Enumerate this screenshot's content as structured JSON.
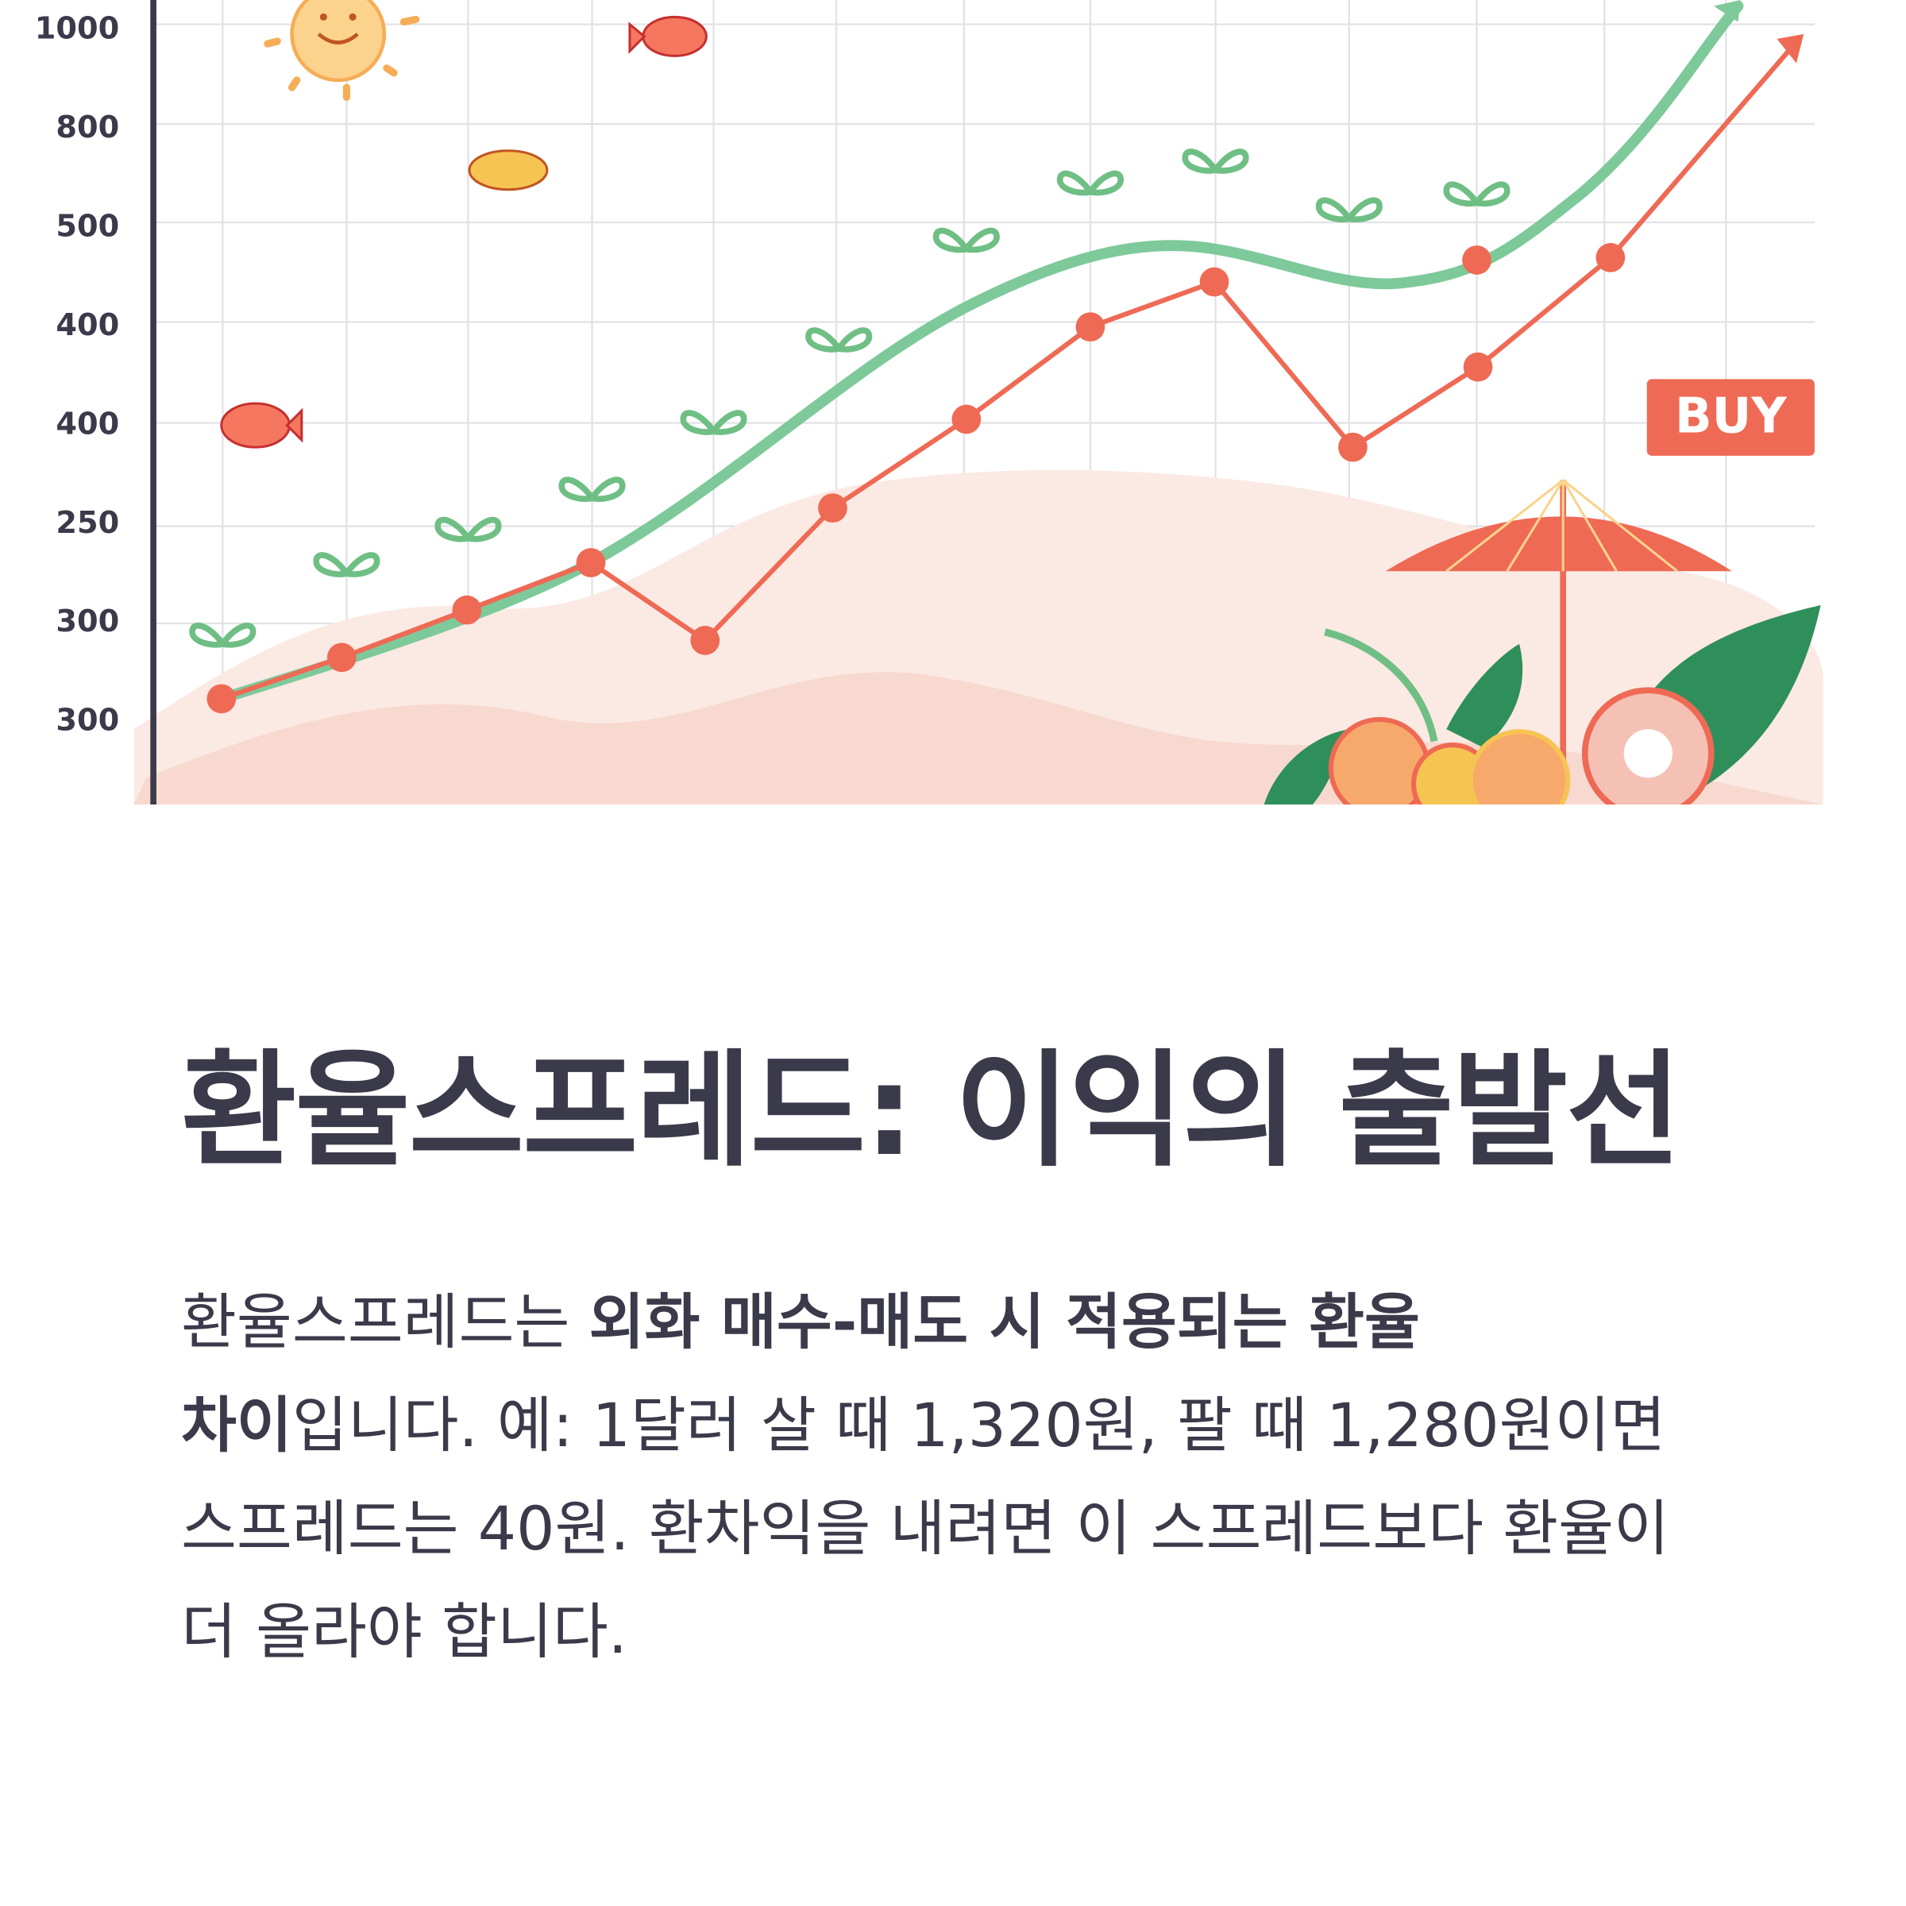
{
  "illustration": {
    "y_labels": [
      "1000",
      "800",
      "500",
      "400",
      "400",
      "250",
      "300",
      "300"
    ],
    "badge": "BUY"
  },
  "title": "환율스프레드: 이익의 출발선",
  "body": {
    "segments": [
      {
        "text": "환율스프레드는 ",
        "bold": false
      },
      {
        "text": "외화 매수-매도 시 적용되는 환율 차이",
        "bold": true
      },
      {
        "text": "입니다. 예: 1달러 살 때 1,320원, 팔 때 1,280원이면 스프레드는 40원. 환차익을 내려면 이 스프레드보다 환율이 더 올라야 합니다.",
        "bold": false
      }
    ]
  }
}
